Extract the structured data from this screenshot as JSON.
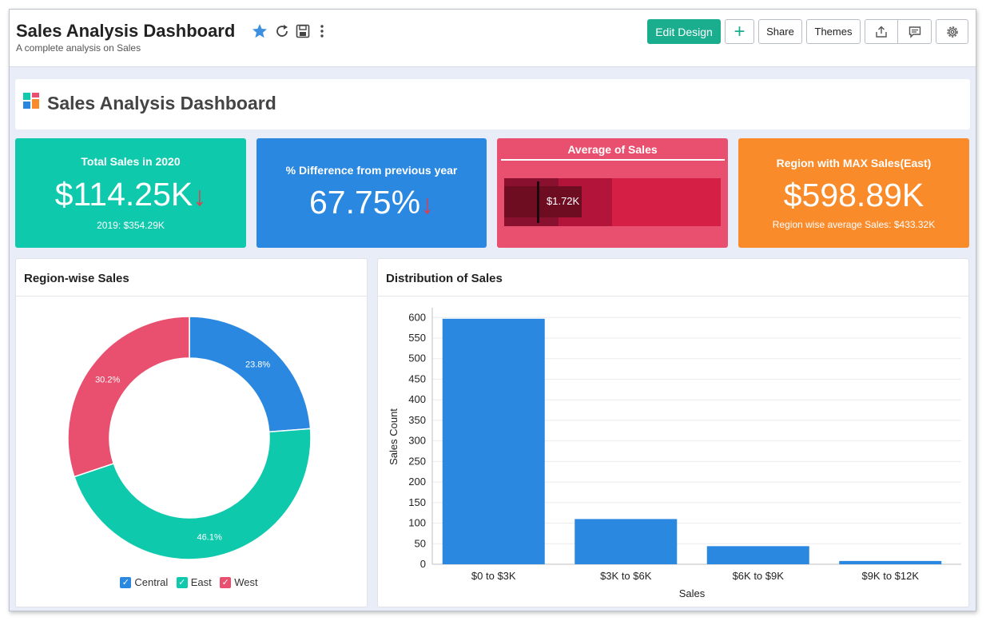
{
  "app": {
    "title": "Sales Analysis Dashboard",
    "subtitle": "A complete analysis on Sales"
  },
  "toolbar": {
    "edit_design": "Edit Design",
    "add": "+",
    "share": "Share",
    "themes": "Themes"
  },
  "header_card": {
    "title": "Sales Analysis Dashboard"
  },
  "kpis": {
    "total_sales": {
      "title": "Total Sales in 2020",
      "value": "$114.25K",
      "arrow": "↓",
      "sub": "2019: $354.29K",
      "color": "#0fc9ad"
    },
    "difference": {
      "title": "% Difference from previous year",
      "value": "67.75%",
      "arrow": "↓",
      "color": "#2a88e0"
    },
    "average": {
      "title": "Average of Sales",
      "value_label": "$1.72K",
      "color": "#e94f6e"
    },
    "region_max": {
      "title": "Region with MAX Sales(East)",
      "value": "$598.89K",
      "sub": "Region wise average Sales: $433.32K",
      "color": "#f98b2b"
    }
  },
  "region_panel": {
    "title": "Region-wise Sales",
    "legend": [
      {
        "label": "Central",
        "color": "#2a88e0"
      },
      {
        "label": "East",
        "color": "#0fc9ad"
      },
      {
        "label": "West",
        "color": "#e94f6e"
      }
    ]
  },
  "distribution_panel": {
    "title": "Distribution of Sales"
  },
  "chart_data": [
    {
      "type": "pie",
      "title": "Region-wise Sales",
      "categories": [
        "Central",
        "East",
        "West"
      ],
      "values": [
        23.8,
        46.1,
        30.2
      ],
      "labels": [
        "23.8%",
        "46.1%",
        "30.2%"
      ],
      "colors": [
        "#2a88e0",
        "#0fc9ad",
        "#e94f6e"
      ],
      "donut": true,
      "legend": "bottom"
    },
    {
      "type": "bar",
      "title": "Distribution of Sales",
      "categories": [
        "$0 to $3K",
        "$3K to $6K",
        "$6K to $9K",
        "$9K to $12K"
      ],
      "values": [
        597,
        110,
        44,
        8
      ],
      "xlabel": "Sales",
      "ylabel": "Sales Count",
      "ylim": [
        0,
        620
      ],
      "yticks": [
        0,
        50,
        100,
        150,
        200,
        250,
        300,
        350,
        400,
        450,
        500,
        550,
        600
      ],
      "grid": true,
      "color": "#2a88e0"
    }
  ]
}
